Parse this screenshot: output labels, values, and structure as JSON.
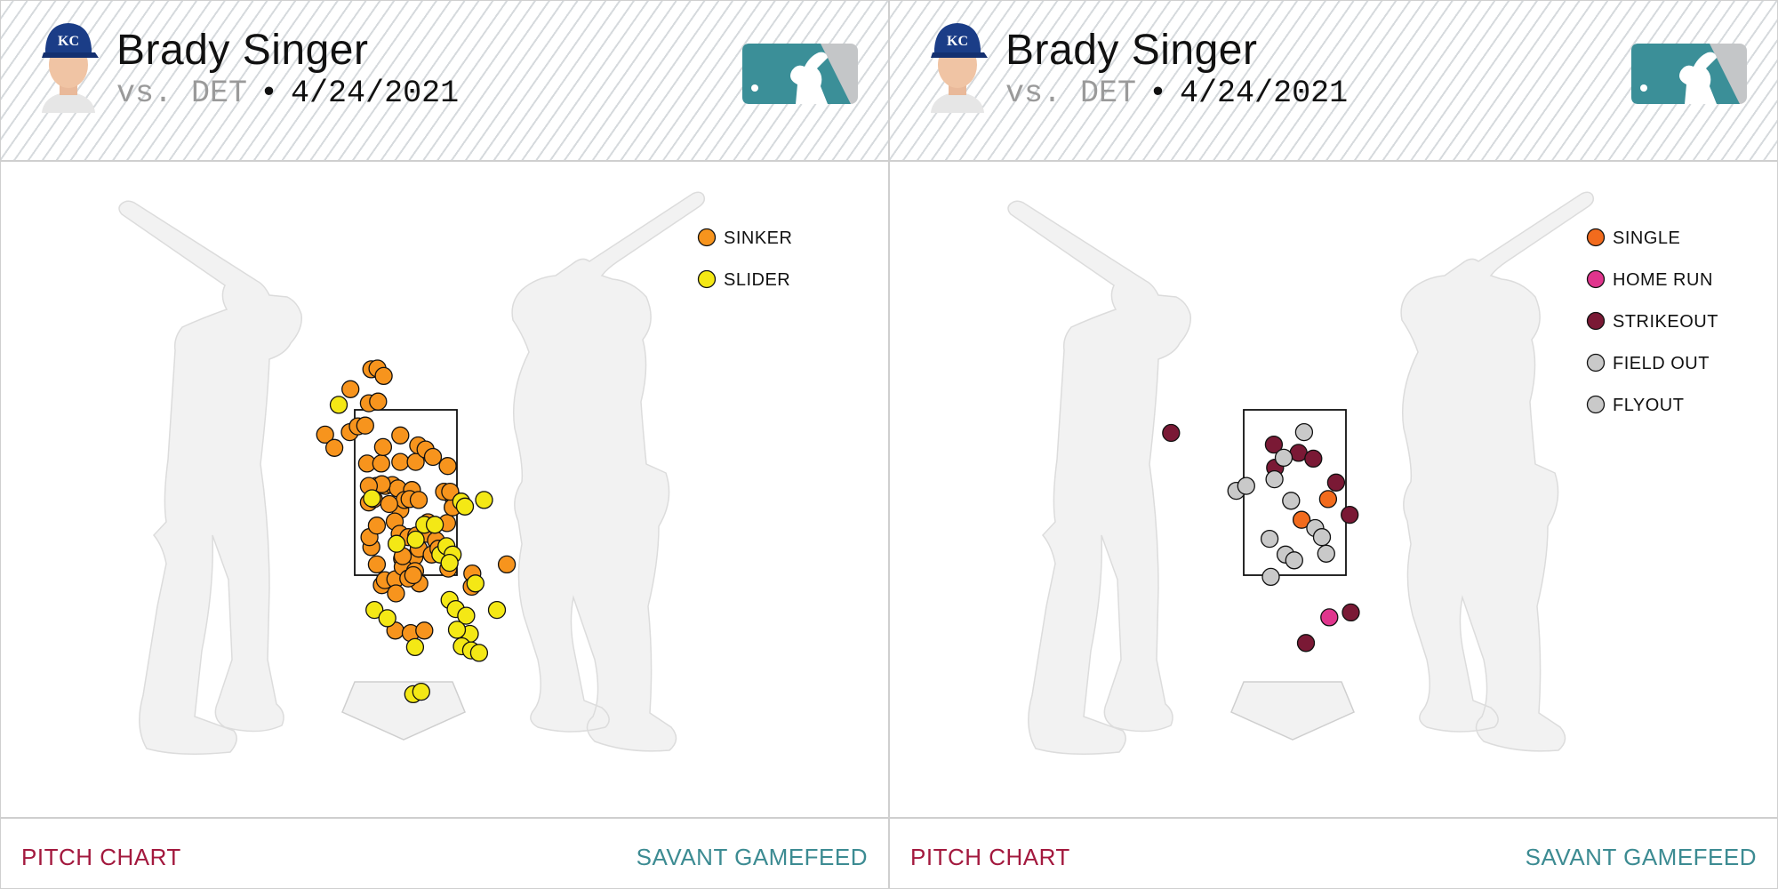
{
  "panels": [
    {
      "player_name": "Brady Singer",
      "vs_label": "vs. DET",
      "separator": "•",
      "date": "4/24/2021",
      "footer_left": "PITCH CHART",
      "footer_right": "SAVANT GAMEFEED"
    },
    {
      "player_name": "Brady Singer",
      "vs_label": "vs. DET",
      "separator": "•",
      "date": "4/24/2021",
      "footer_left": "PITCH CHART",
      "footer_right": "SAVANT GAMEFEED"
    }
  ],
  "chart_data": [
    {
      "type": "scatter",
      "title": "",
      "legend_position": "top-right",
      "x_range": [
        -3,
        3.6
      ],
      "y_range": [
        -1.2,
        5.3
      ],
      "series": [
        {
          "name": "SINKER",
          "color": "#f7941d",
          "points": [
            [
              -1.31,
              3.2
            ],
            [
              -1.16,
              3.04
            ],
            [
              -0.91,
              3.23
            ],
            [
              -0.9,
              3.75
            ],
            [
              -0.6,
              3.58
            ],
            [
              -0.56,
              3.99
            ],
            [
              -0.45,
              3.6
            ],
            [
              -0.46,
              4.0
            ],
            [
              -0.36,
              3.91
            ],
            [
              -0.78,
              3.3
            ],
            [
              -0.66,
              3.31
            ],
            [
              -0.63,
              2.85
            ],
            [
              -0.4,
              2.85
            ],
            [
              -0.37,
              3.05
            ],
            [
              -0.09,
              3.19
            ],
            [
              -0.09,
              2.87
            ],
            [
              0.16,
              2.87
            ],
            [
              0.2,
              3.07
            ],
            [
              0.32,
              3.02
            ],
            [
              -0.6,
              2.38
            ],
            [
              -0.52,
              2.42
            ],
            [
              -0.48,
              2.58
            ],
            [
              -0.33,
              2.58
            ],
            [
              -0.22,
              2.59
            ],
            [
              -0.13,
              2.55
            ],
            [
              0.1,
              2.53
            ],
            [
              -0.09,
              2.29
            ],
            [
              -0.02,
              2.41
            ],
            [
              0.06,
              2.42
            ],
            [
              0.21,
              2.41
            ],
            [
              0.36,
              2.14
            ],
            [
              0.67,
              2.13
            ],
            [
              0.78,
              2.42
            ],
            [
              -0.18,
              2.15
            ],
            [
              -0.27,
              2.36
            ],
            [
              -0.39,
              2.6
            ],
            [
              -0.1,
              2.0
            ],
            [
              0.04,
              1.96
            ],
            [
              0.17,
              1.98
            ],
            [
              0.34,
              2.0
            ],
            [
              0.62,
              2.51
            ],
            [
              0.76,
              2.32
            ],
            [
              -0.06,
              1.7
            ],
            [
              0.14,
              1.72
            ],
            [
              0.21,
              1.82
            ],
            [
              0.49,
              1.92
            ],
            [
              0.72,
              2.51
            ],
            [
              -0.39,
              1.38
            ],
            [
              -0.47,
              1.63
            ],
            [
              -0.34,
              1.44
            ],
            [
              -0.17,
              1.45
            ],
            [
              -0.05,
              1.6
            ],
            [
              0.15,
              1.55
            ],
            [
              0.22,
              1.4
            ],
            [
              0.04,
              1.46
            ],
            [
              -0.16,
              1.28
            ],
            [
              0.12,
              1.5
            ],
            [
              0.66,
              1.78
            ],
            [
              0.69,
              1.58
            ],
            [
              -0.56,
              1.84
            ],
            [
              -0.59,
              1.96
            ],
            [
              0.42,
              1.75
            ],
            [
              0.53,
              1.82
            ],
            [
              1.08,
              1.52
            ],
            [
              1.07,
              1.36
            ],
            [
              1.64,
              1.63
            ],
            [
              -0.05,
              1.73
            ],
            [
              -0.17,
              0.83
            ],
            [
              0.08,
              0.8
            ],
            [
              0.3,
              0.83
            ],
            [
              0.68,
              2.82
            ],
            [
              0.44,
              2.93
            ],
            [
              -0.47,
              2.1
            ],
            [
              -0.6,
              2.58
            ]
          ]
        },
        {
          "name": "SLIDER",
          "color": "#f4e815",
          "points": [
            [
              -1.09,
              3.56
            ],
            [
              -0.55,
              2.43
            ],
            [
              -0.15,
              1.88
            ],
            [
              0.16,
              1.93
            ],
            [
              0.3,
              2.11
            ],
            [
              0.47,
              2.11
            ],
            [
              0.56,
              1.75
            ],
            [
              0.66,
              1.85
            ],
            [
              0.76,
              1.75
            ],
            [
              0.9,
              2.39
            ],
            [
              0.96,
              2.33
            ],
            [
              1.27,
              2.41
            ],
            [
              1.13,
              1.4
            ],
            [
              0.71,
              1.2
            ],
            [
              0.81,
              1.09
            ],
            [
              0.98,
              1.01
            ],
            [
              1.04,
              0.79
            ],
            [
              0.83,
              0.84
            ],
            [
              0.91,
              0.64
            ],
            [
              1.06,
              0.59
            ],
            [
              1.19,
              0.56
            ],
            [
              1.48,
              1.08
            ],
            [
              -0.51,
              1.08
            ],
            [
              -0.3,
              0.98
            ],
            [
              0.15,
              0.63
            ],
            [
              0.12,
              0.06
            ],
            [
              0.25,
              0.09
            ],
            [
              0.71,
              1.65
            ]
          ]
        }
      ]
    },
    {
      "type": "scatter",
      "title": "",
      "legend_position": "top-right",
      "x_range": [
        -3,
        3.6
      ],
      "y_range": [
        -1.2,
        5.3
      ],
      "series": [
        {
          "name": "SINKER",
          "color": "#f7941d",
          "points": []
        },
        {
          "name": "SINGLE",
          "color": "#f26b1d",
          "points": [
            [
              0.11,
              2.17
            ],
            [
              0.54,
              2.42
            ]
          ]
        },
        {
          "name": "HOME RUN",
          "color": "#e0358d",
          "points": [
            [
              0.56,
              0.99
            ]
          ]
        },
        {
          "name": "STRIKEOUT",
          "color": "#7a1935",
          "points": [
            [
              -2.01,
              3.22
            ],
            [
              -0.34,
              3.08
            ],
            [
              -0.32,
              2.8
            ],
            [
              0.06,
              2.98
            ],
            [
              0.3,
              2.91
            ],
            [
              0.67,
              2.62
            ],
            [
              0.89,
              2.23
            ],
            [
              0.18,
              0.68
            ],
            [
              0.91,
              1.05
            ]
          ]
        },
        {
          "name": "FIELD OUT",
          "color": "#c9c9c9",
          "points": [
            [
              0.15,
              3.23
            ],
            [
              -0.18,
              2.92
            ],
            [
              -0.33,
              2.66
            ],
            [
              -0.95,
              2.52
            ],
            [
              -0.79,
              2.58
            ],
            [
              -0.06,
              2.4
            ],
            [
              0.33,
              2.07
            ],
            [
              0.44,
              1.96
            ],
            [
              0.51,
              1.76
            ],
            [
              -0.41,
              1.94
            ],
            [
              -0.15,
              1.75
            ],
            [
              -0.01,
              1.68
            ],
            [
              -0.39,
              1.48
            ]
          ]
        },
        {
          "name": "FLYOUT",
          "color": "#c9c9c9",
          "points": []
        }
      ]
    }
  ]
}
